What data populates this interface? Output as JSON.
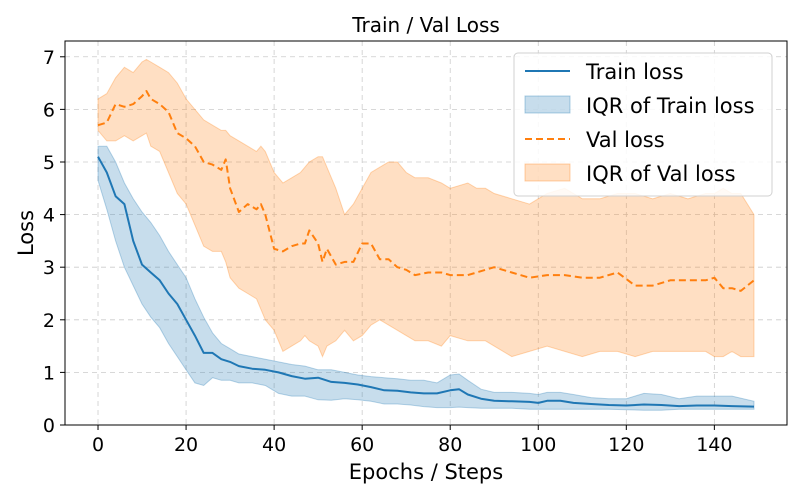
{
  "chart_data": {
    "type": "line",
    "title": "Train / Val Loss",
    "xlabel": "Epochs / Steps",
    "ylabel": "Loss",
    "xlim": [
      -7.5,
      156.5
    ],
    "ylim": [
      0,
      7.3
    ],
    "xticks": [
      0,
      20,
      40,
      60,
      80,
      100,
      120,
      140
    ],
    "yticks": [
      0,
      1,
      2,
      3,
      4,
      5,
      6,
      7
    ],
    "grid": true,
    "legend_position": "top-right",
    "colors": {
      "train": "#1f77b4",
      "val": "#ff7f0e"
    },
    "series": [
      {
        "name": "Train loss",
        "style": "solid",
        "color": "#1f77b4",
        "x": [
          0,
          2,
          4,
          6,
          8,
          10,
          12,
          14,
          16,
          18,
          20,
          22,
          24,
          26,
          28,
          30,
          32,
          35,
          38,
          41,
          44,
          47,
          50,
          53,
          56,
          59,
          62,
          65,
          68,
          71,
          74,
          77,
          80,
          82,
          84,
          87,
          90,
          94,
          98,
          100,
          102,
          105,
          108,
          112,
          116,
          120,
          124,
          128,
          132,
          136,
          140,
          144,
          149
        ],
        "values": [
          5.1,
          4.8,
          4.35,
          4.2,
          3.5,
          3.05,
          2.9,
          2.75,
          2.5,
          2.3,
          2.0,
          1.7,
          1.37,
          1.37,
          1.25,
          1.2,
          1.12,
          1.07,
          1.05,
          1.0,
          0.93,
          0.88,
          0.9,
          0.82,
          0.8,
          0.77,
          0.72,
          0.66,
          0.65,
          0.62,
          0.6,
          0.6,
          0.66,
          0.68,
          0.58,
          0.5,
          0.46,
          0.45,
          0.44,
          0.42,
          0.46,
          0.46,
          0.42,
          0.4,
          0.38,
          0.37,
          0.39,
          0.38,
          0.36,
          0.37,
          0.37,
          0.36,
          0.35
        ]
      },
      {
        "name": "IQR of Train loss",
        "style": "band",
        "color": "#1f77b4",
        "x": [
          0,
          2,
          4,
          6,
          8,
          10,
          12,
          14,
          16,
          18,
          20,
          22,
          24,
          26,
          28,
          30,
          32,
          35,
          38,
          41,
          44,
          47,
          50,
          53,
          56,
          59,
          62,
          65,
          68,
          71,
          74,
          77,
          80,
          82,
          84,
          87,
          90,
          94,
          98,
          100,
          102,
          105,
          108,
          112,
          116,
          120,
          124,
          128,
          132,
          136,
          140,
          144,
          149
        ],
        "lower": [
          4.65,
          4.1,
          3.5,
          3.0,
          2.65,
          2.3,
          2.05,
          1.85,
          1.55,
          1.3,
          1.05,
          0.8,
          0.75,
          0.9,
          0.85,
          0.85,
          0.8,
          0.8,
          0.75,
          0.6,
          0.55,
          0.55,
          0.48,
          0.47,
          0.5,
          0.48,
          0.45,
          0.4,
          0.4,
          0.38,
          0.35,
          0.33,
          0.33,
          0.34,
          0.33,
          0.32,
          0.32,
          0.32,
          0.3,
          0.3,
          0.3,
          0.3,
          0.3,
          0.3,
          0.3,
          0.29,
          0.28,
          0.28,
          0.3,
          0.3,
          0.3,
          0.3,
          0.3
        ],
        "upper": [
          5.3,
          5.3,
          5.0,
          4.6,
          4.3,
          4.05,
          3.85,
          3.6,
          3.3,
          3.05,
          2.8,
          2.4,
          2.05,
          1.75,
          1.55,
          1.45,
          1.35,
          1.3,
          1.25,
          1.2,
          1.15,
          1.12,
          1.05,
          1.05,
          1.0,
          0.95,
          0.92,
          0.9,
          0.88,
          0.85,
          0.85,
          0.8,
          0.95,
          0.97,
          0.85,
          0.68,
          0.62,
          0.62,
          0.6,
          0.58,
          0.62,
          0.62,
          0.58,
          0.52,
          0.5,
          0.5,
          0.6,
          0.58,
          0.5,
          0.55,
          0.55,
          0.55,
          0.45
        ]
      },
      {
        "name": "Val loss",
        "style": "dashed",
        "color": "#ff7f0e",
        "x": [
          0,
          2,
          4,
          6,
          8,
          10,
          11,
          12,
          14,
          16,
          18,
          20,
          22,
          24,
          26,
          28,
          29,
          30,
          32,
          34,
          36,
          37,
          38,
          40,
          42,
          44,
          46,
          47,
          48,
          50,
          51,
          52,
          54,
          56,
          58,
          60,
          62,
          64,
          66,
          68,
          70,
          72,
          75,
          78,
          80,
          84,
          86,
          88,
          90,
          94,
          98,
          102,
          106,
          110,
          114,
          118,
          122,
          126,
          130,
          134,
          138,
          140,
          142,
          144,
          146,
          149
        ],
        "values": [
          5.7,
          5.75,
          6.1,
          6.05,
          6.1,
          6.25,
          6.35,
          6.2,
          6.1,
          5.95,
          5.55,
          5.45,
          5.3,
          5.0,
          4.95,
          4.85,
          5.05,
          4.5,
          4.05,
          4.2,
          4.1,
          4.2,
          4.0,
          3.35,
          3.3,
          3.4,
          3.45,
          3.45,
          3.7,
          3.45,
          3.1,
          3.35,
          3.05,
          3.1,
          3.1,
          3.45,
          3.45,
          3.15,
          3.15,
          3.0,
          2.95,
          2.85,
          2.9,
          2.9,
          2.85,
          2.85,
          2.9,
          2.95,
          3.0,
          2.9,
          2.8,
          2.85,
          2.85,
          2.8,
          2.8,
          2.9,
          2.65,
          2.65,
          2.75,
          2.75,
          2.75,
          2.8,
          2.6,
          2.6,
          2.55,
          2.75
        ]
      },
      {
        "name": "IQR of Val loss",
        "style": "band",
        "color": "#ff7f0e",
        "x": [
          0,
          2,
          4,
          6,
          8,
          10,
          11,
          12,
          14,
          16,
          18,
          20,
          22,
          24,
          26,
          28,
          29,
          30,
          32,
          34,
          36,
          37,
          38,
          40,
          42,
          44,
          46,
          47,
          48,
          50,
          51,
          52,
          54,
          56,
          58,
          60,
          62,
          64,
          66,
          68,
          70,
          72,
          75,
          78,
          80,
          84,
          86,
          88,
          90,
          94,
          98,
          102,
          106,
          110,
          114,
          118,
          122,
          126,
          130,
          134,
          138,
          140,
          142,
          144,
          146,
          149
        ],
        "lower": [
          5.6,
          5.4,
          5.4,
          5.5,
          5.4,
          5.5,
          5.55,
          5.3,
          5.2,
          4.8,
          4.4,
          4.2,
          3.8,
          3.4,
          3.3,
          3.3,
          3.1,
          2.8,
          2.6,
          2.5,
          2.4,
          2.2,
          2.0,
          1.8,
          1.4,
          1.5,
          1.6,
          1.7,
          1.6,
          1.5,
          1.3,
          1.5,
          1.6,
          1.8,
          1.6,
          1.7,
          1.9,
          2.0,
          1.9,
          1.8,
          1.7,
          1.6,
          1.6,
          1.5,
          1.7,
          1.6,
          1.6,
          1.6,
          1.5,
          1.3,
          1.4,
          1.5,
          1.4,
          1.3,
          1.4,
          1.4,
          1.3,
          1.4,
          1.4,
          1.4,
          1.4,
          1.3,
          1.3,
          1.4,
          1.3,
          1.3
        ],
        "upper": [
          6.2,
          6.3,
          6.6,
          6.8,
          6.7,
          6.9,
          6.95,
          6.9,
          6.8,
          6.7,
          6.5,
          6.2,
          6.0,
          5.8,
          5.7,
          5.6,
          5.6,
          5.5,
          5.4,
          5.3,
          5.2,
          5.3,
          5.2,
          4.8,
          4.6,
          4.7,
          4.8,
          4.9,
          5.0,
          5.1,
          5.1,
          4.9,
          4.5,
          4.0,
          4.2,
          4.5,
          4.8,
          4.9,
          5.0,
          5.0,
          4.8,
          4.7,
          4.7,
          4.6,
          4.5,
          4.6,
          4.5,
          4.5,
          4.4,
          4.3,
          4.2,
          4.4,
          4.5,
          4.3,
          4.3,
          4.4,
          4.4,
          4.3,
          4.4,
          4.3,
          4.4,
          4.4,
          4.5,
          4.4,
          4.4,
          4.0
        ]
      }
    ],
    "legend": [
      "Train loss",
      "IQR of Train loss",
      "Val loss",
      "IQR of Val loss"
    ]
  }
}
